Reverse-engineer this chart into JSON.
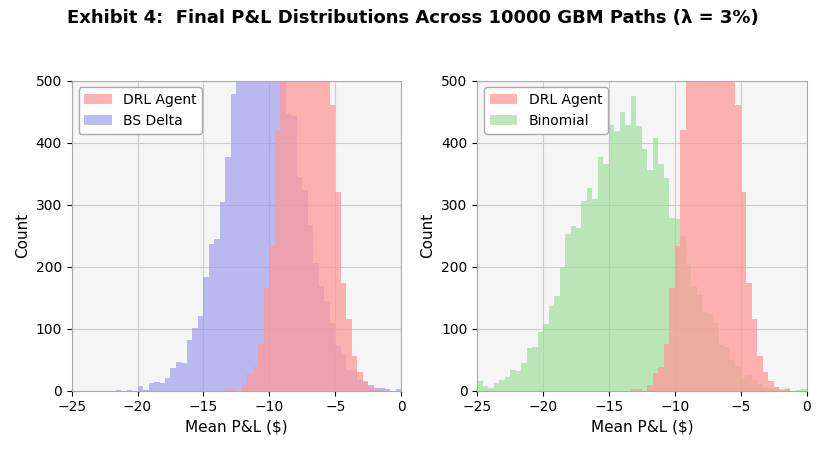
{
  "title": "Exhibit 4:  Final P&L Distributions Across 10000 GBM Paths (λ = 3%)",
  "title_fontsize": 13,
  "xlabel": "Mean P&L ($)",
  "ylabel": "Count",
  "xlim": [
    -25,
    0
  ],
  "ylim": [
    0,
    500
  ],
  "xticks": [
    -25,
    -20,
    -15,
    -10,
    -5,
    0
  ],
  "yticks": [
    0,
    100,
    200,
    300,
    400,
    500
  ],
  "bins": 60,
  "n_paths": 10000,
  "drl_mean": -7.2,
  "drl_std": 1.5,
  "bs_mean": -10.5,
  "bs_std": 2.8,
  "binomial_mean": -13.5,
  "binomial_std": 3.8,
  "drl_color": "#FF9999",
  "bs_color": "#9999EE",
  "binomial_color": "#99DD99",
  "drl_alpha": 0.75,
  "bs_alpha": 0.65,
  "binomial_alpha": 0.65,
  "drl_label": "DRL Agent",
  "bs_label": "BS Delta",
  "binomial_label": "Binomial",
  "grid_color": "#cccccc",
  "background_color": "#f5f5f5",
  "legend_fontsize": 10,
  "axis_fontsize": 11,
  "tick_fontsize": 10
}
